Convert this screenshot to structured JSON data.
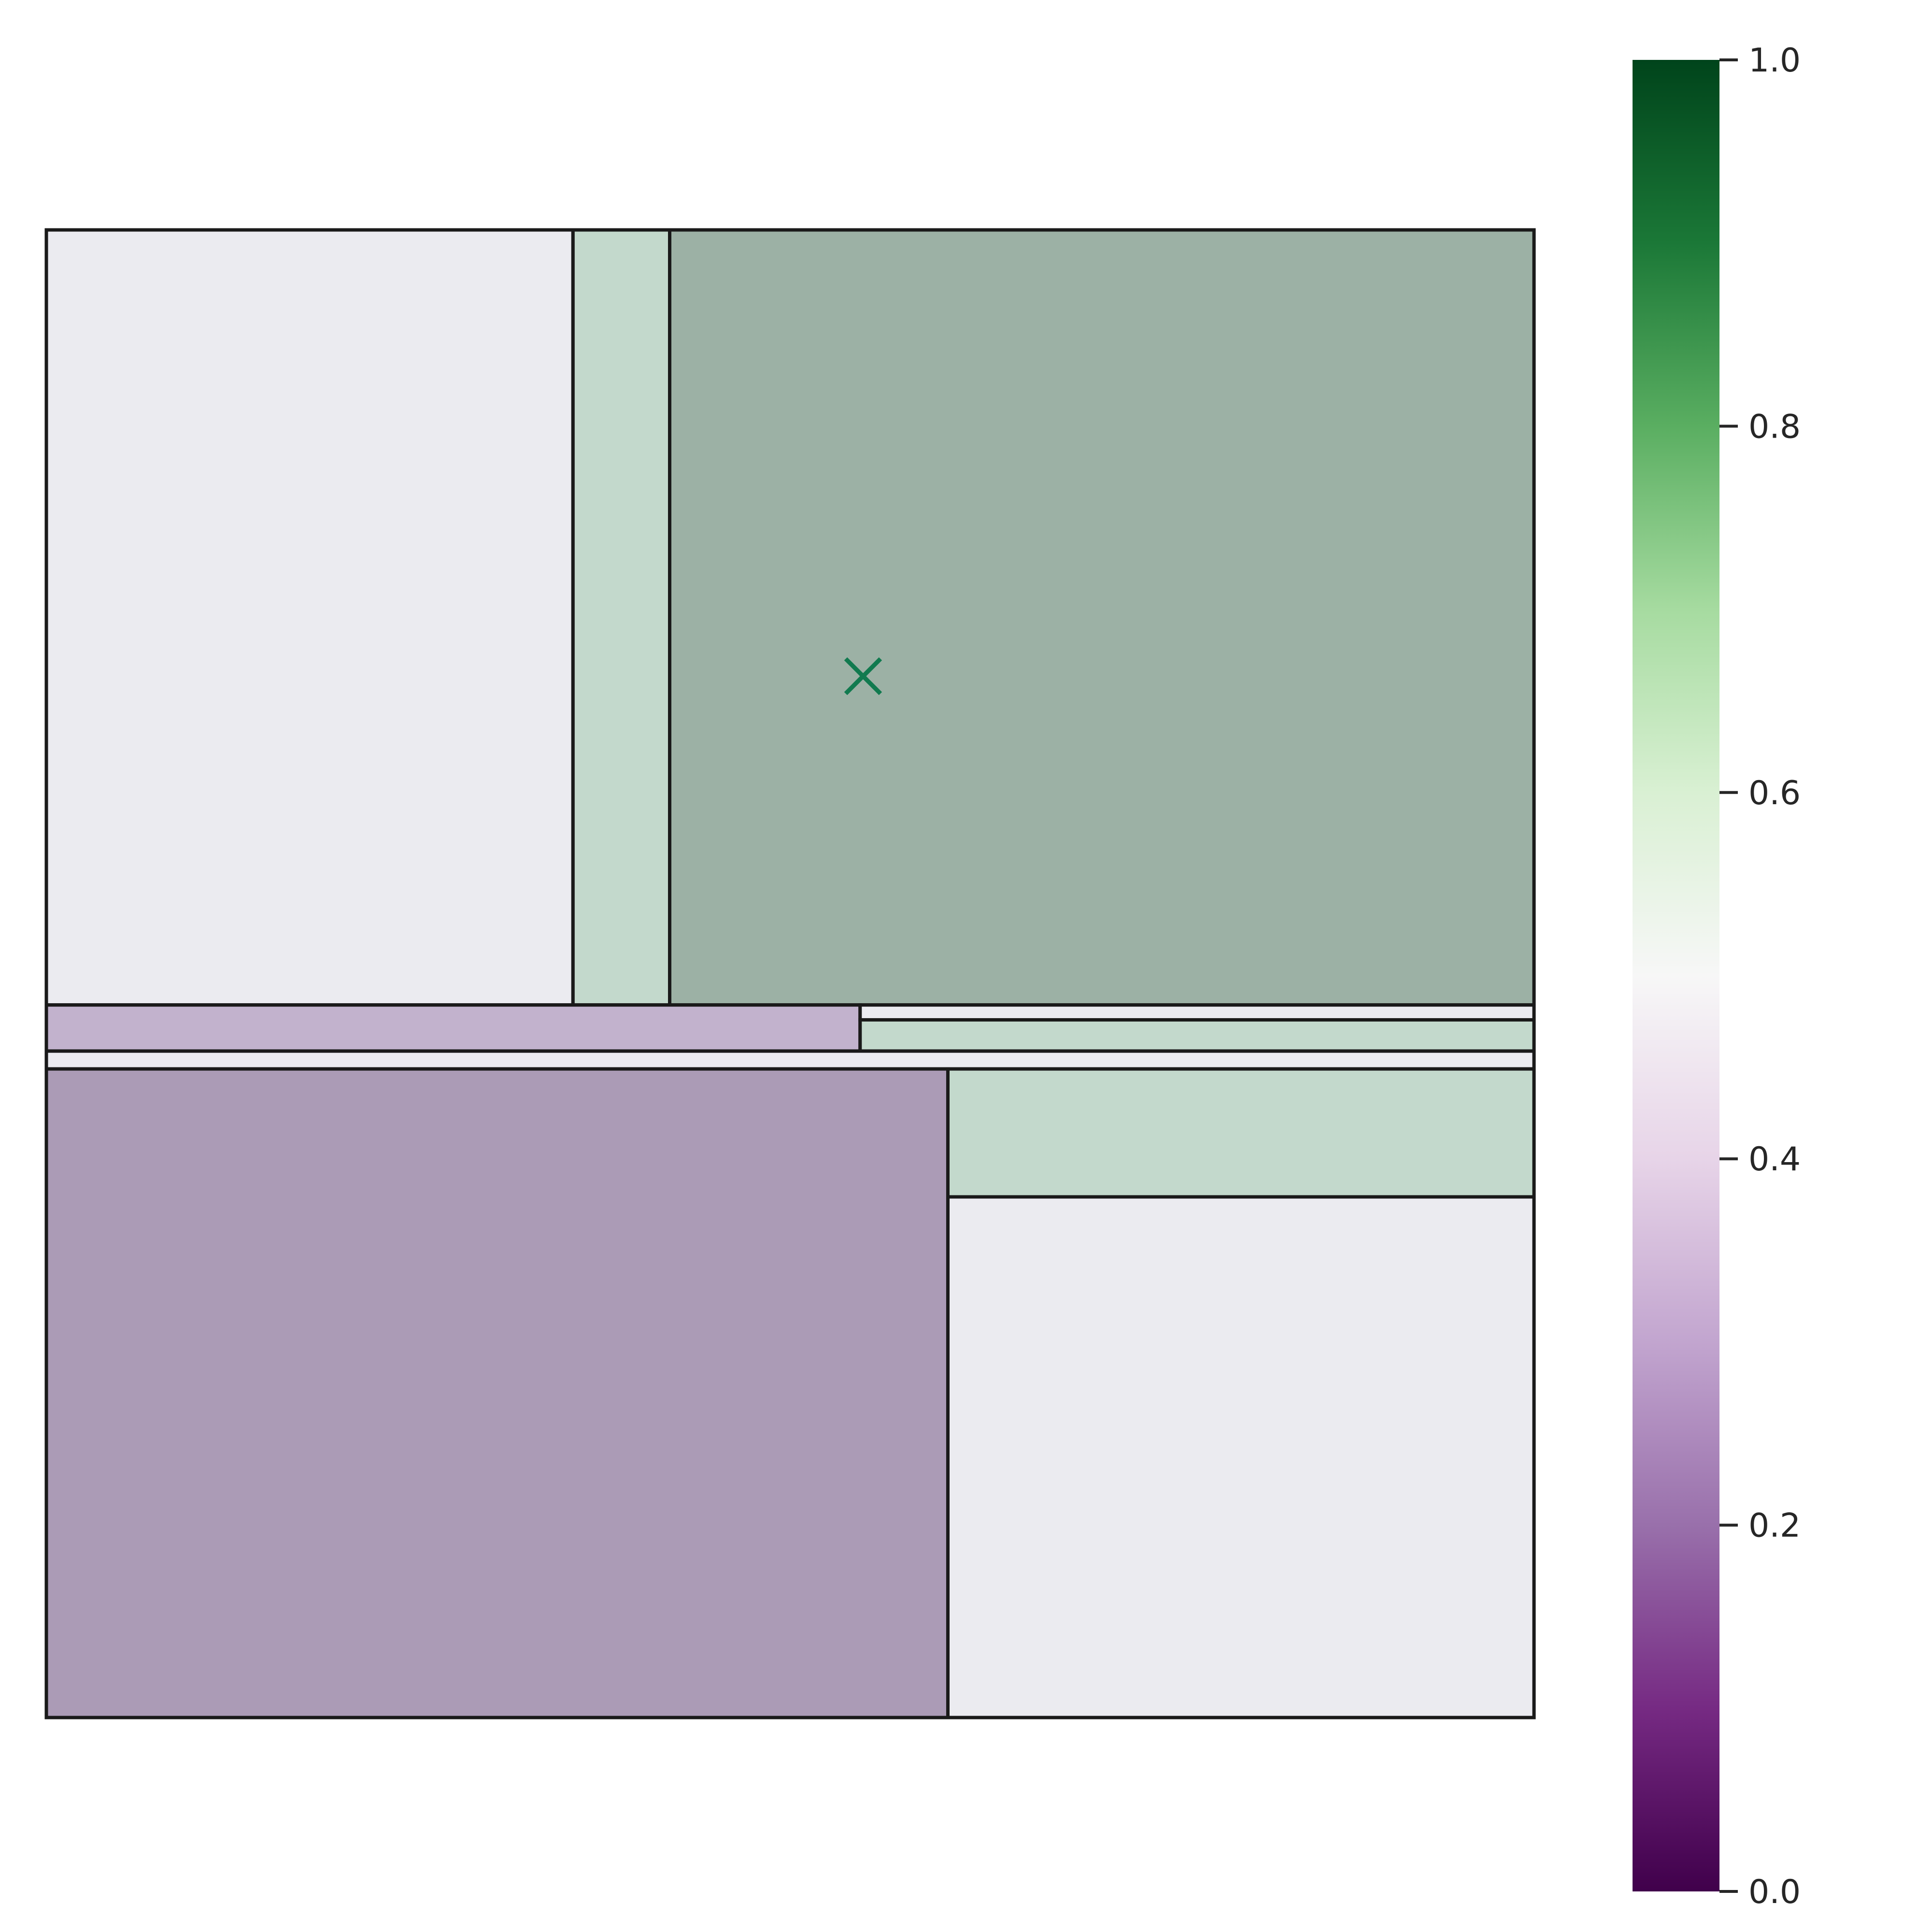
{
  "chart_data": {
    "type": "heatmap",
    "title": "",
    "xlabel": "",
    "ylabel": "",
    "xlim": [
      0,
      1
    ],
    "ylim": [
      0,
      1
    ],
    "grid": false,
    "regions": [
      {
        "x0": 0.0,
        "x1": 0.354,
        "y0": 0.479,
        "y1": 1.0,
        "value": 0.47
      },
      {
        "x0": 0.354,
        "x1": 0.419,
        "y0": 0.479,
        "y1": 1.0,
        "value": 0.64
      },
      {
        "x0": 0.419,
        "x1": 1.0,
        "y0": 0.479,
        "y1": 1.0,
        "value": 0.86
      },
      {
        "x0": 0.0,
        "x1": 0.547,
        "y0": 0.448,
        "y1": 0.479,
        "value": 0.32
      },
      {
        "x0": 0.547,
        "x1": 1.0,
        "y0": 0.469,
        "y1": 0.479,
        "value": 0.47
      },
      {
        "x0": 0.547,
        "x1": 1.0,
        "y0": 0.448,
        "y1": 0.469,
        "value": 0.64
      },
      {
        "x0": 0.0,
        "x1": 1.0,
        "y0": 0.436,
        "y1": 0.448,
        "value": 0.47
      },
      {
        "x0": 0.0,
        "x1": 0.606,
        "y0": 0.0,
        "y1": 0.436,
        "value": 0.2
      },
      {
        "x0": 0.606,
        "x1": 1.0,
        "y0": 0.35,
        "y1": 0.436,
        "value": 0.64
      },
      {
        "x0": 0.606,
        "x1": 1.0,
        "y0": 0.0,
        "y1": 0.35,
        "value": 0.47
      }
    ],
    "marker": {
      "x": 0.549,
      "y": 0.7,
      "symbol": "x",
      "color": "#117a4f"
    },
    "colorbar": {
      "colormap": "PRGn",
      "vmin": 0.0,
      "vmax": 1.0,
      "ticks": [
        "0.0",
        "0.2",
        "0.4",
        "0.6",
        "0.8",
        "1.0"
      ]
    }
  },
  "colors": {
    "edge": "#1a1a1a",
    "tick": "#262626"
  }
}
